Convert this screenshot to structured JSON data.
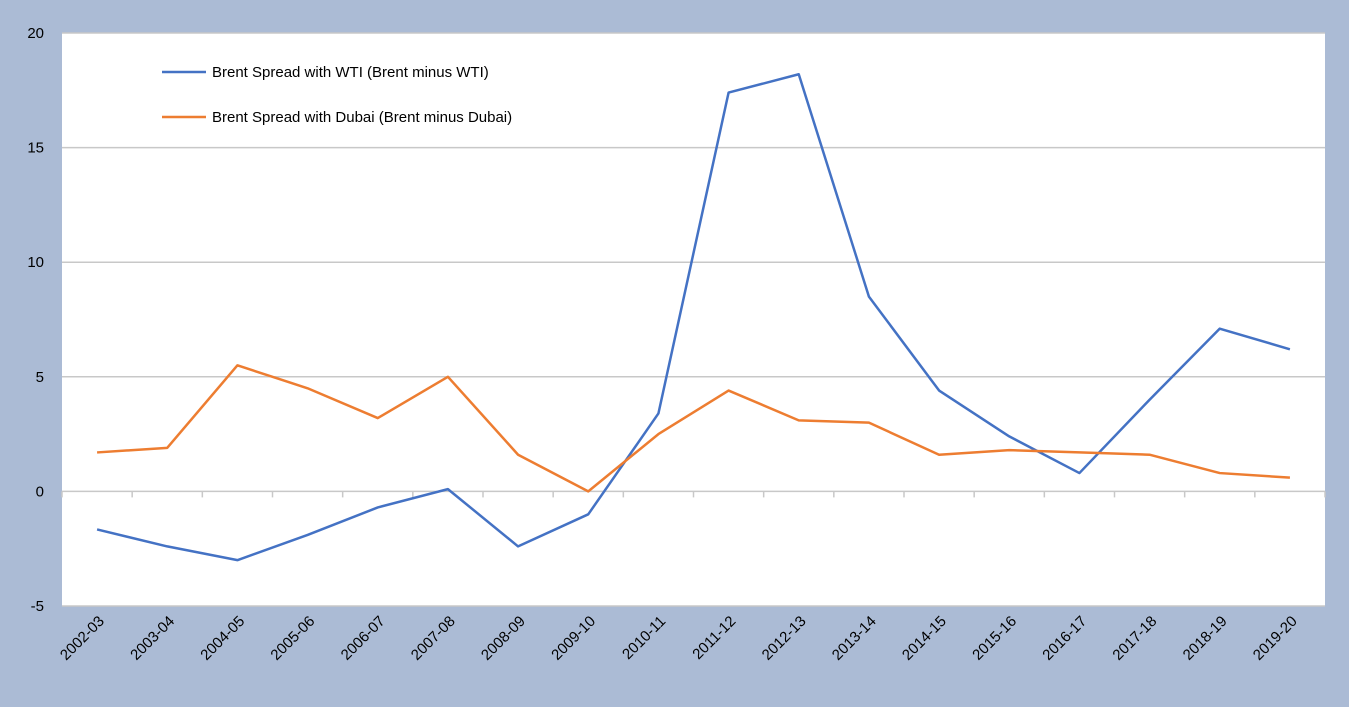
{
  "chart_data": {
    "type": "line",
    "categories": [
      "2002-03",
      "2003-04",
      "2004-05",
      "2005-06",
      "2006-07",
      "2007-08",
      "2008-09",
      "2009-10",
      "2010-11",
      "2011-12",
      "2012-13",
      "2013-14",
      "2014-15",
      "2015-16",
      "2016-17",
      "2017-18",
      "2018-19",
      "2019-20"
    ],
    "series": [
      {
        "name": "Brent Spread with WTI (Brent minus WTI)",
        "color": "#4472c4",
        "values": [
          -1.66,
          -2.4,
          -3.0,
          -1.9,
          -0.7,
          0.1,
          -2.4,
          -1.0,
          3.4,
          17.4,
          18.2,
          8.5,
          4.4,
          2.4,
          0.8,
          4.0,
          7.1,
          6.2
        ]
      },
      {
        "name": "Brent Spread with Dubai (Brent minus Dubai)",
        "color": "#ed7d31",
        "values": [
          1.7,
          1.9,
          5.5,
          4.5,
          3.2,
          5.0,
          1.6,
          0,
          2.5,
          4.4,
          3.1,
          3.0,
          1.6,
          1.8,
          1.7,
          1.6,
          0.8,
          0.6
        ]
      }
    ],
    "ylim": [
      -5,
      20
    ],
    "yticks": [
      -5,
      0,
      5,
      10,
      15,
      20
    ],
    "grid": true
  }
}
